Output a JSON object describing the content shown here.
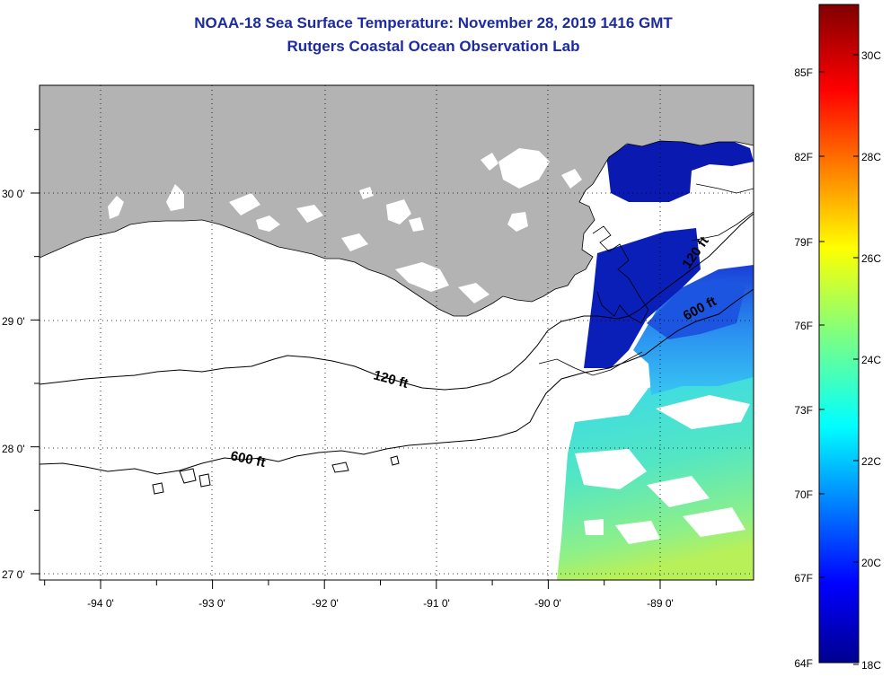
{
  "header": {
    "title": "NOAA-18 Sea Surface Temperature:  November 28, 2019 1416 GMT",
    "subtitle": "Rutgers Coastal Ocean Observation Lab"
  },
  "map": {
    "lat_labels": [
      "30 0'",
      "29 0'",
      "28 0'",
      "27 0'"
    ],
    "lon_labels": [
      "-94 0'",
      "-93 0'",
      "-92 0'",
      "-91 0'",
      "-90 0'",
      "-89 0'"
    ],
    "land_color": "#b3b3b3",
    "no_data_color": "#ffffff",
    "grid": true,
    "contour_labels": {
      "shelf_120_west": "120 ft",
      "shelf_120_east": "120 ft",
      "slope_600_west": "600 ft",
      "slope_600_east": "600 ft"
    }
  },
  "colorbar": {
    "fahrenheit_labels": [
      "85F",
      "82F",
      "79F",
      "76F",
      "73F",
      "70F",
      "67F",
      "64F"
    ],
    "celsius_labels": [
      "30C",
      "28C",
      "26C",
      "24C",
      "22C",
      "20C",
      "18C"
    ],
    "range_celsius": [
      18,
      31
    ],
    "colormap": "jet"
  }
}
